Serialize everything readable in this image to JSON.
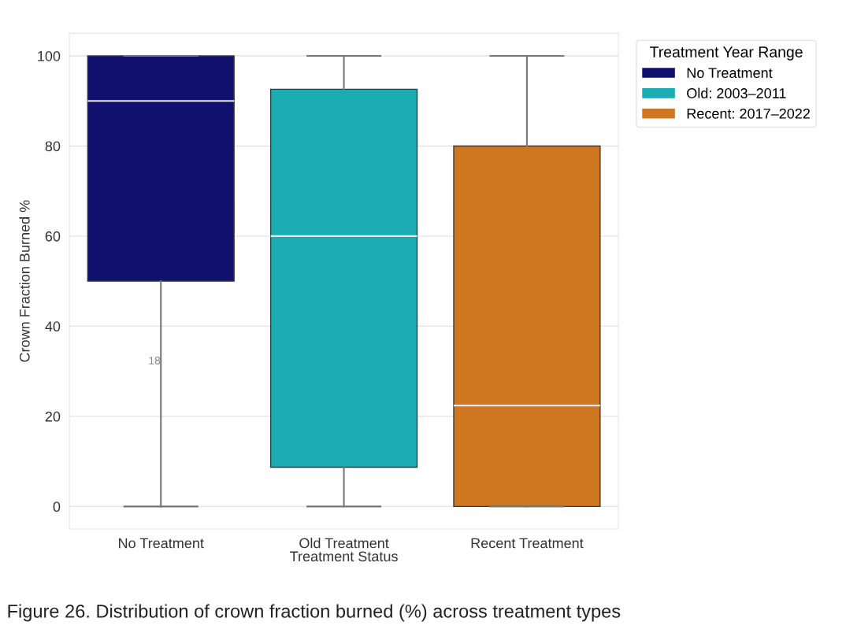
{
  "chart_data": {
    "type": "box",
    "xlabel": "Treatment Status",
    "ylabel": "Crown Fraction Burned %",
    "legend_title": "Treatment Year Range",
    "categories": [
      "No Treatment",
      "Old Treatment",
      "Recent Treatment"
    ],
    "series": [
      {
        "name": "No Treatment",
        "color": "#11106f",
        "boxes": [
          {
            "low": 0,
            "q1": 50,
            "median": 90,
            "q3": 100,
            "high": 100
          },
          null,
          null
        ]
      },
      {
        "name": "Old: 2003–2011",
        "color": "#1babb2",
        "boxes": [
          null,
          {
            "low": 0,
            "q1": 8.7,
            "median": 60,
            "q3": 92.6,
            "high": 100
          },
          null
        ]
      },
      {
        "name": "Recent: 2017–2022",
        "color": "#cf7621",
        "boxes": [
          null,
          null,
          {
            "low": 0,
            "q1": 0,
            "median": 22.4,
            "q3": 80,
            "high": 100
          }
        ]
      }
    ],
    "ylim": [
      -5,
      105
    ],
    "yticks": [
      0,
      20,
      40,
      60,
      80,
      100
    ],
    "grid": "y",
    "legend": "top right",
    "annotations": [
      "18",
      "Figure 26. Distribution of crown fraction burned (%) across treatment types"
    ]
  }
}
